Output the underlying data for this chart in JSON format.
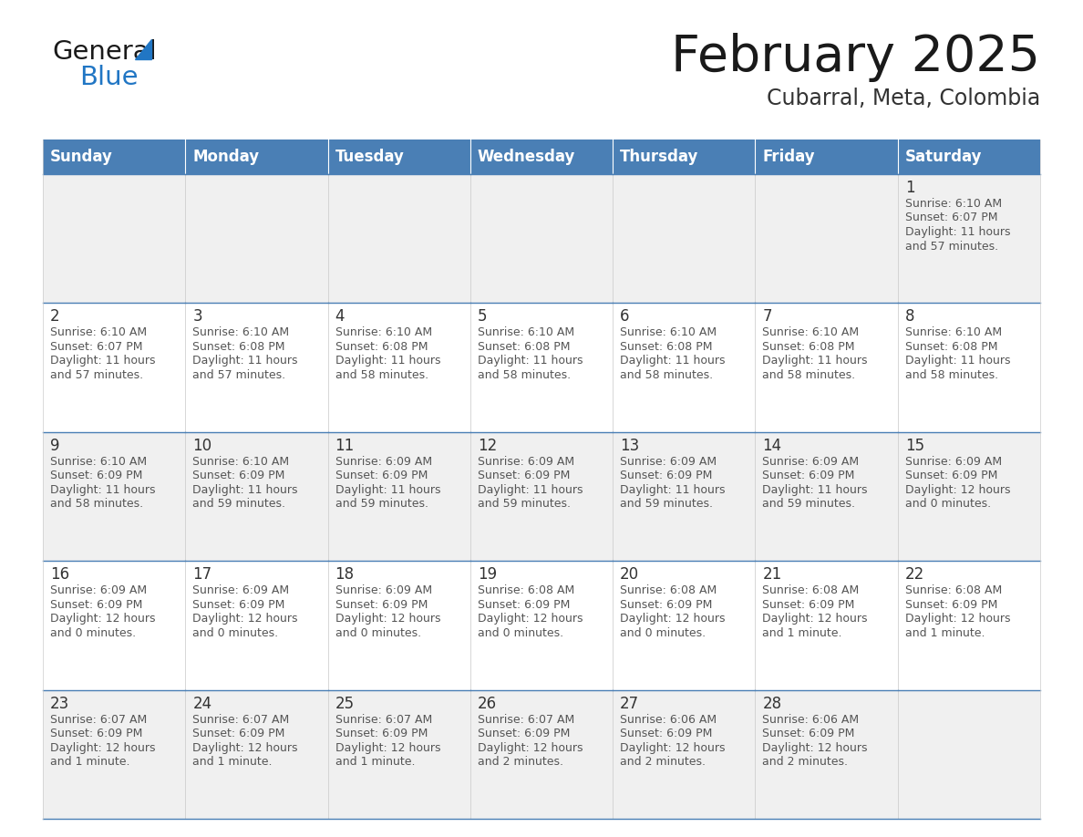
{
  "title": "February 2025",
  "subtitle": "Cubarral, Meta, Colombia",
  "days_of_week": [
    "Sunday",
    "Monday",
    "Tuesday",
    "Wednesday",
    "Thursday",
    "Friday",
    "Saturday"
  ],
  "header_bg": "#4a7fb5",
  "header_text": "#ffffff",
  "cell_bg_even": "#f0f0f0",
  "cell_bg_odd": "#ffffff",
  "cell_border": "#4a7fb5",
  "day_num_color": "#333333",
  "text_color": "#555555",
  "title_color": "#1a1a1a",
  "subtitle_color": "#333333",
  "logo_general_color": "#1a1a1a",
  "logo_blue_color": "#2176c4",
  "calendar_data": [
    {
      "day": 1,
      "week": 0,
      "dow": 6,
      "sunrise": "6:10 AM",
      "sunset": "6:07 PM",
      "daylight": "11 hours\nand 57 minutes."
    },
    {
      "day": 2,
      "week": 1,
      "dow": 0,
      "sunrise": "6:10 AM",
      "sunset": "6:07 PM",
      "daylight": "11 hours\nand 57 minutes."
    },
    {
      "day": 3,
      "week": 1,
      "dow": 1,
      "sunrise": "6:10 AM",
      "sunset": "6:08 PM",
      "daylight": "11 hours\nand 57 minutes."
    },
    {
      "day": 4,
      "week": 1,
      "dow": 2,
      "sunrise": "6:10 AM",
      "sunset": "6:08 PM",
      "daylight": "11 hours\nand 58 minutes."
    },
    {
      "day": 5,
      "week": 1,
      "dow": 3,
      "sunrise": "6:10 AM",
      "sunset": "6:08 PM",
      "daylight": "11 hours\nand 58 minutes."
    },
    {
      "day": 6,
      "week": 1,
      "dow": 4,
      "sunrise": "6:10 AM",
      "sunset": "6:08 PM",
      "daylight": "11 hours\nand 58 minutes."
    },
    {
      "day": 7,
      "week": 1,
      "dow": 5,
      "sunrise": "6:10 AM",
      "sunset": "6:08 PM",
      "daylight": "11 hours\nand 58 minutes."
    },
    {
      "day": 8,
      "week": 1,
      "dow": 6,
      "sunrise": "6:10 AM",
      "sunset": "6:08 PM",
      "daylight": "11 hours\nand 58 minutes."
    },
    {
      "day": 9,
      "week": 2,
      "dow": 0,
      "sunrise": "6:10 AM",
      "sunset": "6:09 PM",
      "daylight": "11 hours\nand 58 minutes."
    },
    {
      "day": 10,
      "week": 2,
      "dow": 1,
      "sunrise": "6:10 AM",
      "sunset": "6:09 PM",
      "daylight": "11 hours\nand 59 minutes."
    },
    {
      "day": 11,
      "week": 2,
      "dow": 2,
      "sunrise": "6:09 AM",
      "sunset": "6:09 PM",
      "daylight": "11 hours\nand 59 minutes."
    },
    {
      "day": 12,
      "week": 2,
      "dow": 3,
      "sunrise": "6:09 AM",
      "sunset": "6:09 PM",
      "daylight": "11 hours\nand 59 minutes."
    },
    {
      "day": 13,
      "week": 2,
      "dow": 4,
      "sunrise": "6:09 AM",
      "sunset": "6:09 PM",
      "daylight": "11 hours\nand 59 minutes."
    },
    {
      "day": 14,
      "week": 2,
      "dow": 5,
      "sunrise": "6:09 AM",
      "sunset": "6:09 PM",
      "daylight": "11 hours\nand 59 minutes."
    },
    {
      "day": 15,
      "week": 2,
      "dow": 6,
      "sunrise": "6:09 AM",
      "sunset": "6:09 PM",
      "daylight": "12 hours\nand 0 minutes."
    },
    {
      "day": 16,
      "week": 3,
      "dow": 0,
      "sunrise": "6:09 AM",
      "sunset": "6:09 PM",
      "daylight": "12 hours\nand 0 minutes."
    },
    {
      "day": 17,
      "week": 3,
      "dow": 1,
      "sunrise": "6:09 AM",
      "sunset": "6:09 PM",
      "daylight": "12 hours\nand 0 minutes."
    },
    {
      "day": 18,
      "week": 3,
      "dow": 2,
      "sunrise": "6:09 AM",
      "sunset": "6:09 PM",
      "daylight": "12 hours\nand 0 minutes."
    },
    {
      "day": 19,
      "week": 3,
      "dow": 3,
      "sunrise": "6:08 AM",
      "sunset": "6:09 PM",
      "daylight": "12 hours\nand 0 minutes."
    },
    {
      "day": 20,
      "week": 3,
      "dow": 4,
      "sunrise": "6:08 AM",
      "sunset": "6:09 PM",
      "daylight": "12 hours\nand 0 minutes."
    },
    {
      "day": 21,
      "week": 3,
      "dow": 5,
      "sunrise": "6:08 AM",
      "sunset": "6:09 PM",
      "daylight": "12 hours\nand 1 minute."
    },
    {
      "day": 22,
      "week": 3,
      "dow": 6,
      "sunrise": "6:08 AM",
      "sunset": "6:09 PM",
      "daylight": "12 hours\nand 1 minute."
    },
    {
      "day": 23,
      "week": 4,
      "dow": 0,
      "sunrise": "6:07 AM",
      "sunset": "6:09 PM",
      "daylight": "12 hours\nand 1 minute."
    },
    {
      "day": 24,
      "week": 4,
      "dow": 1,
      "sunrise": "6:07 AM",
      "sunset": "6:09 PM",
      "daylight": "12 hours\nand 1 minute."
    },
    {
      "day": 25,
      "week": 4,
      "dow": 2,
      "sunrise": "6:07 AM",
      "sunset": "6:09 PM",
      "daylight": "12 hours\nand 1 minute."
    },
    {
      "day": 26,
      "week": 4,
      "dow": 3,
      "sunrise": "6:07 AM",
      "sunset": "6:09 PM",
      "daylight": "12 hours\nand 2 minutes."
    },
    {
      "day": 27,
      "week": 4,
      "dow": 4,
      "sunrise": "6:06 AM",
      "sunset": "6:09 PM",
      "daylight": "12 hours\nand 2 minutes."
    },
    {
      "day": 28,
      "week": 4,
      "dow": 5,
      "sunrise": "6:06 AM",
      "sunset": "6:09 PM",
      "daylight": "12 hours\nand 2 minutes."
    }
  ]
}
